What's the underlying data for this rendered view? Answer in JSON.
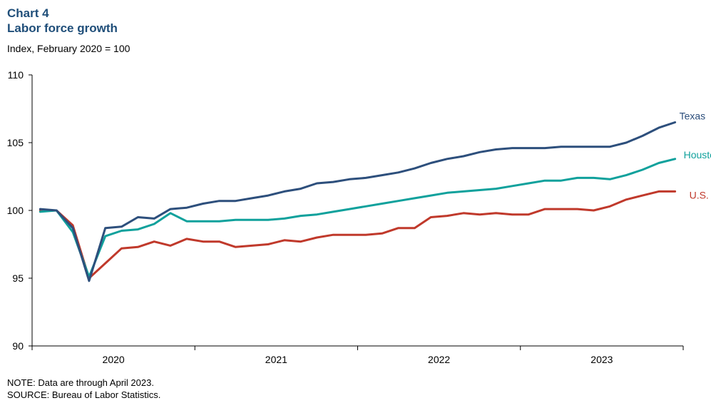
{
  "header": {
    "chart_number": "Chart 4",
    "title": "Labor force growth",
    "subtitle": "Index, February 2020 = 100"
  },
  "footer": {
    "note": "NOTE: Data are through April 2023.",
    "source": "SOURCE: Bureau of Labor Statistics."
  },
  "colors": {
    "texas": "#2d4f7c",
    "houston": "#10a19c",
    "us": "#c0392b",
    "title": "#1f4e79"
  },
  "chart_data": {
    "type": "line",
    "title": "Labor force growth",
    "ylabel": "Index, February 2020 = 100",
    "ylim": [
      90,
      110
    ],
    "yticks": [
      90,
      95,
      100,
      105,
      110
    ],
    "x": [
      "2020-01",
      "2020-02",
      "2020-03",
      "2020-04",
      "2020-05",
      "2020-06",
      "2020-07",
      "2020-08",
      "2020-09",
      "2020-10",
      "2020-11",
      "2020-12",
      "2021-01",
      "2021-02",
      "2021-03",
      "2021-04",
      "2021-05",
      "2021-06",
      "2021-07",
      "2021-08",
      "2021-09",
      "2021-10",
      "2021-11",
      "2021-12",
      "2022-01",
      "2022-02",
      "2022-03",
      "2022-04",
      "2022-05",
      "2022-06",
      "2022-07",
      "2022-08",
      "2022-09",
      "2022-10",
      "2022-11",
      "2022-12",
      "2023-01",
      "2023-02",
      "2023-03",
      "2023-04"
    ],
    "xtick_labels": [
      "2020",
      "2021",
      "2022",
      "2023"
    ],
    "series": [
      {
        "name": "Texas",
        "values": [
          100.1,
          100.0,
          98.7,
          94.8,
          98.7,
          98.8,
          99.5,
          99.4,
          100.1,
          100.2,
          100.5,
          100.7,
          100.7,
          100.9,
          101.1,
          101.4,
          101.6,
          102.0,
          102.1,
          102.3,
          102.4,
          102.6,
          102.8,
          103.1,
          103.5,
          103.8,
          104.0,
          104.3,
          104.5,
          104.6,
          104.6,
          104.6,
          104.7,
          104.7,
          104.7,
          104.7,
          105.0,
          105.5,
          106.1,
          106.5
        ]
      },
      {
        "name": "Houston",
        "values": [
          99.9,
          100.0,
          98.4,
          95.1,
          98.1,
          98.5,
          98.6,
          99.0,
          99.8,
          99.2,
          99.2,
          99.2,
          99.3,
          99.3,
          99.3,
          99.4,
          99.6,
          99.7,
          99.9,
          100.1,
          100.3,
          100.5,
          100.7,
          100.9,
          101.1,
          101.3,
          101.4,
          101.5,
          101.6,
          101.8,
          102.0,
          102.2,
          102.2,
          102.4,
          102.4,
          102.3,
          102.6,
          103.0,
          103.5,
          103.8
        ]
      },
      {
        "name": "U.S.",
        "values": [
          100.0,
          100.0,
          98.9,
          95.0,
          96.1,
          97.2,
          97.3,
          97.7,
          97.4,
          97.9,
          97.7,
          97.7,
          97.3,
          97.4,
          97.5,
          97.8,
          97.7,
          98.0,
          98.2,
          98.2,
          98.2,
          98.3,
          98.7,
          98.7,
          99.5,
          99.6,
          99.8,
          99.7,
          99.8,
          99.7,
          99.7,
          100.1,
          100.1,
          100.1,
          100.0,
          100.3,
          100.8,
          101.1,
          101.4,
          101.4
        ]
      }
    ]
  }
}
